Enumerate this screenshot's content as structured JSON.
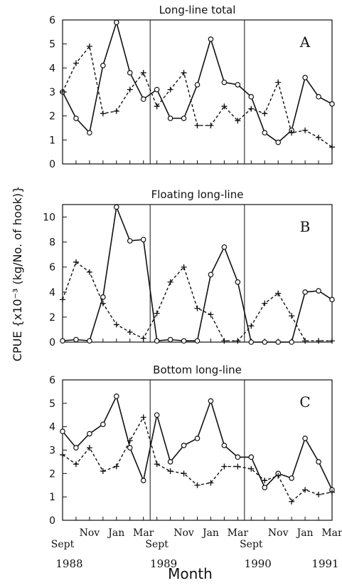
{
  "chart_data": {
    "type": "line",
    "xlabel": "Month",
    "ylabel": "CPUE {x10⁻³ (kg/No. of hook)}",
    "x_month_labels": [
      "Sept",
      "Nov",
      "Jan",
      "Mar",
      "Sept",
      "Nov",
      "Jan",
      "Mar",
      "Sept",
      "Nov",
      "Jan",
      "Mar"
    ],
    "x_year_labels": [
      "1988",
      "1989",
      "1990",
      "1991"
    ],
    "panels": [
      {
        "title": "Long-line total",
        "letter": "A",
        "ylim": [
          0,
          6
        ],
        "yticks": [
          "0",
          "1",
          "2",
          "3",
          "4",
          "5",
          "6"
        ],
        "series": [
          {
            "style": "solid-circle",
            "values": [
              3.0,
              1.9,
              1.3,
              4.1,
              5.9,
              3.8,
              2.7,
              3.1,
              1.9,
              1.9,
              3.3,
              5.2,
              3.4,
              3.3,
              2.8,
              1.3,
              0.9,
              1.4,
              3.6,
              2.8,
              2.5
            ]
          },
          {
            "style": "dashed-plus",
            "values": [
              3.0,
              4.2,
              4.9,
              2.1,
              2.2,
              3.1,
              3.8,
              2.4,
              3.1,
              3.8,
              1.6,
              1.6,
              2.4,
              1.8,
              2.3,
              2.1,
              3.4,
              1.3,
              1.4,
              1.1,
              0.7
            ]
          }
        ]
      },
      {
        "title": "Floating long-line",
        "letter": "B",
        "ylim": [
          0,
          11
        ],
        "yticks": [
          "0",
          "2",
          "4",
          "6",
          "8",
          "10"
        ],
        "series": [
          {
            "style": "solid-circle",
            "values": [
              0.1,
              0.2,
              0.1,
              3.6,
              10.8,
              8.1,
              8.2,
              0.1,
              0.2,
              0.1,
              0.1,
              5.4,
              7.6,
              4.8,
              0.0,
              0.0,
              0.0,
              0.0,
              4.0,
              4.1,
              3.4
            ]
          },
          {
            "style": "dashed-plus",
            "values": [
              3.4,
              6.4,
              5.6,
              3.1,
              1.4,
              0.8,
              0.3,
              2.3,
              4.8,
              6.0,
              2.7,
              2.2,
              0.1,
              0.1,
              1.3,
              3.1,
              3.9,
              2.1,
              0.1,
              0.1,
              0.1
            ]
          }
        ]
      },
      {
        "title": "Bottom long-line",
        "letter": "C",
        "ylim": [
          0,
          6
        ],
        "yticks": [
          "0",
          "1",
          "2",
          "3",
          "4",
          "5",
          "6"
        ],
        "series": [
          {
            "style": "solid-circle",
            "values": [
              3.8,
              3.1,
              3.7,
              4.1,
              5.3,
              3.1,
              1.7,
              4.5,
              2.5,
              3.2,
              3.5,
              5.1,
              3.2,
              2.7,
              2.7,
              1.4,
              2.0,
              1.8,
              3.5,
              2.5,
              1.3
            ]
          },
          {
            "style": "dashed-plus",
            "values": [
              2.8,
              2.4,
              3.1,
              2.1,
              2.3,
              3.4,
              4.4,
              2.4,
              2.1,
              2.0,
              1.5,
              1.6,
              2.3,
              2.3,
              2.2,
              1.7,
              1.9,
              0.8,
              1.3,
              1.1,
              1.2
            ]
          }
        ]
      }
    ]
  }
}
